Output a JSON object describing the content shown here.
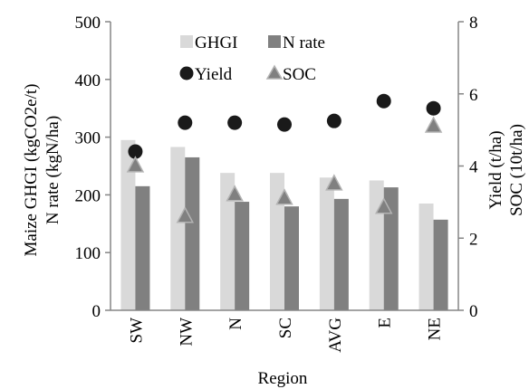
{
  "chart_data": {
    "type": "bar",
    "categories": [
      "SW",
      "NW",
      "N",
      "SC",
      "AVG",
      "E",
      "NE"
    ],
    "xlabel": "Region",
    "ylabel_left": [
      "Maize GHGI (kgCO2e/t)",
      "N rate (kgN/ha)"
    ],
    "ylabel_right": [
      "Yield (t/ha)",
      "SOC (10t/ha)"
    ],
    "ylim_left": [
      0,
      500
    ],
    "yticks_left": [
      "0",
      "100",
      "200",
      "300",
      "400",
      "500"
    ],
    "ylim_right": [
      0,
      8
    ],
    "yticks_right": [
      "0",
      "2",
      "4",
      "6",
      "8"
    ],
    "grid": false,
    "legend_position": "top-center",
    "series": [
      {
        "name": "GHGI",
        "type": "bar",
        "axis": "left",
        "color": "#d9d9d9",
        "values": [
          295,
          283,
          238,
          238,
          230,
          225,
          185
        ]
      },
      {
        "name": "N rate",
        "type": "bar",
        "axis": "left",
        "color": "#808080",
        "values": [
          215,
          265,
          188,
          180,
          193,
          213,
          157
        ]
      },
      {
        "name": "Yield",
        "type": "scatter",
        "axis": "right",
        "marker": "circle",
        "color": "#1a1a1a",
        "values": [
          4.4,
          5.2,
          5.2,
          5.15,
          5.25,
          5.8,
          5.6
        ]
      },
      {
        "name": "SOC",
        "type": "scatter",
        "axis": "right",
        "marker": "triangle",
        "color": "#808080",
        "values": [
          4.0,
          2.6,
          3.2,
          3.1,
          3.5,
          2.85,
          5.1
        ]
      }
    ]
  }
}
